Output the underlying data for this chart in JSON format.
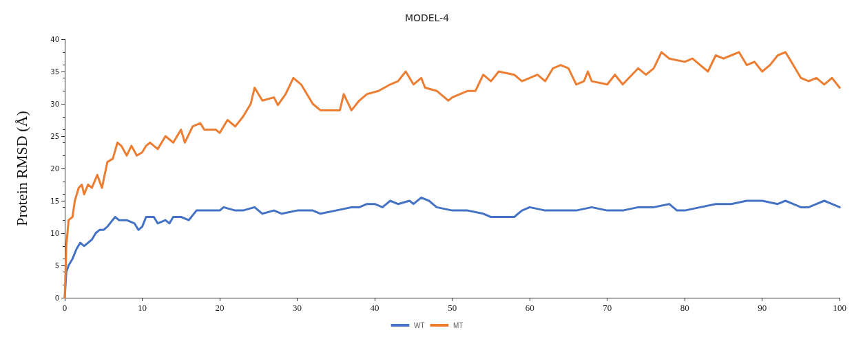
{
  "chart_data": {
    "type": "line",
    "title": "MODEL-4",
    "ylabel": "Protein RMSD (Å)",
    "xlim": [
      0,
      100
    ],
    "xticks": [
      0,
      10,
      20,
      30,
      40,
      50,
      60,
      70,
      80,
      90,
      100
    ],
    "ylim": [
      0,
      40
    ],
    "yticks": [
      0,
      5,
      10,
      15,
      20,
      25,
      30,
      35,
      40
    ],
    "grid": false,
    "legend": "bottom",
    "marker": "none",
    "line_style": "solid",
    "series": [
      {
        "name": "WT",
        "color": "#4472c4",
        "x": [
          0,
          0.2,
          0.5,
          1,
          1.5,
          2,
          2.5,
          3,
          3.5,
          4,
          4.5,
          5,
          5.5,
          6.5,
          7,
          8,
          9,
          9.5,
          10,
          10.5,
          11.5,
          12,
          13,
          13.5,
          14,
          15,
          16,
          17,
          18,
          20,
          20.5,
          22,
          23,
          24.5,
          25.5,
          27,
          28,
          30,
          32,
          33,
          35,
          37,
          38,
          39,
          40,
          41,
          42,
          43,
          44.5,
          45,
          46,
          47,
          48,
          50,
          52,
          54,
          55,
          57,
          58,
          59,
          60,
          62,
          64,
          66,
          68,
          70,
          72,
          74,
          76,
          78,
          79,
          80,
          82,
          84,
          86,
          88,
          89,
          90,
          92,
          93,
          94,
          95,
          96,
          97,
          98,
          99,
          100
        ],
        "values": [
          0,
          4,
          5,
          6,
          7.5,
          8.5,
          8,
          8.5,
          9,
          10,
          10.5,
          10.5,
          11,
          12.5,
          12,
          12,
          11.5,
          10.5,
          11,
          12.5,
          12.5,
          11.5,
          12,
          11.5,
          12.5,
          12.5,
          12,
          13.5,
          13.5,
          13.5,
          14,
          13.5,
          13.5,
          14,
          13,
          13.5,
          13,
          13.5,
          13.5,
          13,
          13.5,
          14,
          14,
          14.5,
          14.5,
          14,
          15,
          14.5,
          15,
          14.5,
          15.5,
          15,
          14,
          13.5,
          13.5,
          13,
          12.5,
          12.5,
          12.5,
          13.5,
          14,
          13.5,
          13.5,
          13.5,
          14,
          13.5,
          13.5,
          14,
          14,
          14.5,
          13.5,
          13.5,
          14,
          14.5,
          14.5,
          15,
          15,
          15,
          14.5,
          15,
          14.5,
          14,
          14,
          14.5,
          15,
          14.5,
          14
        ]
      },
      {
        "name": "MT",
        "color": "#ed7d31",
        "x": [
          0,
          0.2,
          0.5,
          1,
          1.3,
          1.8,
          2.2,
          2.5,
          3,
          3.5,
          4.2,
          4.8,
          5.5,
          6.2,
          6.8,
          7.3,
          8,
          8.6,
          9.3,
          10,
          10.5,
          11,
          12,
          13,
          14,
          15,
          15.5,
          16.5,
          17.5,
          18,
          19.5,
          20,
          21,
          22,
          23,
          24,
          24.5,
          25.5,
          27,
          27.5,
          28.5,
          29.5,
          30.5,
          31.5,
          32,
          33,
          34.5,
          35.5,
          36,
          37,
          38,
          39,
          40.5,
          42,
          43,
          44,
          45,
          46,
          46.5,
          48,
          49.5,
          50,
          52,
          53,
          54,
          55,
          56,
          58,
          59,
          60,
          61,
          62,
          63,
          64,
          65,
          66,
          67,
          67.5,
          68,
          70,
          71,
          72,
          74,
          75,
          76,
          77,
          78,
          80,
          81,
          82,
          83,
          84,
          85,
          86,
          87,
          88,
          89,
          90,
          91,
          92,
          93,
          94,
          95,
          96,
          97,
          98,
          99,
          100
        ],
        "values": [
          0,
          8,
          12,
          12.5,
          15,
          17,
          17.5,
          16,
          17.5,
          17,
          19,
          17,
          21,
          21.5,
          24,
          23.5,
          22,
          23.5,
          22,
          22.5,
          23.5,
          24,
          23,
          25,
          24,
          26,
          24,
          26.5,
          27,
          26,
          26,
          25.5,
          27.5,
          26.5,
          28,
          30,
          32.5,
          30.5,
          31,
          29.8,
          31.5,
          34,
          33,
          31,
          30,
          29,
          29,
          29,
          31.5,
          29,
          30.5,
          31.5,
          32,
          33,
          33.5,
          35,
          33,
          34,
          32.5,
          32,
          30.5,
          31,
          32,
          32,
          34.5,
          33.5,
          35,
          34.5,
          33.5,
          34,
          34.5,
          33.5,
          35.5,
          36,
          35.5,
          33,
          33.5,
          35,
          33.5,
          33,
          34.5,
          33,
          35.5,
          34.5,
          35.5,
          38,
          37,
          36.5,
          37,
          36,
          35,
          37.5,
          37,
          37.5,
          38,
          36,
          36.5,
          35,
          36,
          37.5,
          38,
          36,
          34,
          33.5,
          34,
          33,
          34,
          32.5
        ]
      }
    ]
  }
}
